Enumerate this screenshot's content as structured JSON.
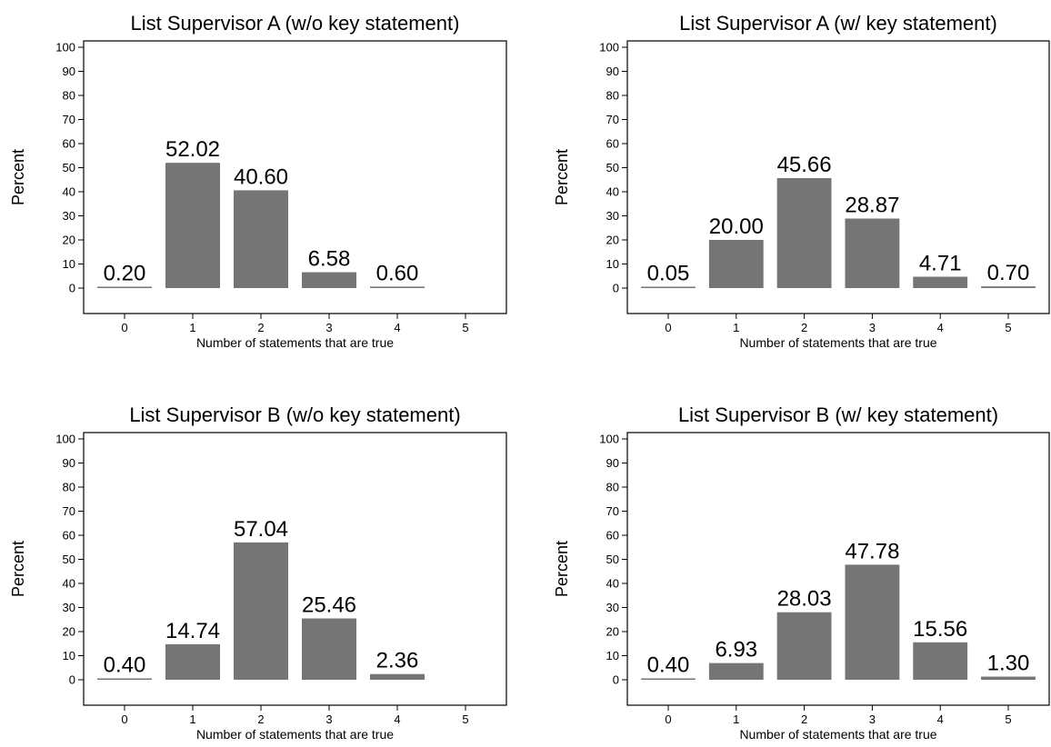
{
  "chart_data": [
    {
      "type": "bar",
      "title": "List Supervisor A (w/o key statement)",
      "xlabel": "Number of statements that are true",
      "ylabel": "Percent",
      "categories": [
        "0",
        "1",
        "2",
        "3",
        "4",
        "5"
      ],
      "values": [
        0.2,
        52.02,
        40.6,
        6.58,
        0.6,
        null
      ],
      "value_labels": [
        "0.20",
        "52.02",
        "40.60",
        "6.58",
        "0.60",
        ""
      ],
      "ylim": [
        0,
        100
      ],
      "yticks": [
        "0",
        "10",
        "20",
        "30",
        "40",
        "50",
        "60",
        "70",
        "80",
        "90",
        "100"
      ],
      "bar_color": "#757575",
      "grid": false
    },
    {
      "type": "bar",
      "title": "List Supervisor A (w/ key statement)",
      "xlabel": "Number of statements that are true",
      "ylabel": "Percent",
      "categories": [
        "0",
        "1",
        "2",
        "3",
        "4",
        "5"
      ],
      "values": [
        0.05,
        20.0,
        45.66,
        28.87,
        4.71,
        0.7
      ],
      "value_labels": [
        "0.05",
        "20.00",
        "45.66",
        "28.87",
        "4.71",
        "0.70"
      ],
      "ylim": [
        0,
        100
      ],
      "yticks": [
        "0",
        "10",
        "20",
        "30",
        "40",
        "50",
        "60",
        "70",
        "80",
        "90",
        "100"
      ],
      "bar_color": "#757575",
      "grid": false
    },
    {
      "type": "bar",
      "title": "List Supervisor B (w/o key statement)",
      "xlabel": "Number of statements that are true",
      "ylabel": "Percent",
      "categories": [
        "0",
        "1",
        "2",
        "3",
        "4",
        "5"
      ],
      "values": [
        0.4,
        14.74,
        57.04,
        25.46,
        2.36,
        null
      ],
      "value_labels": [
        "0.40",
        "14.74",
        "57.04",
        "25.46",
        "2.36",
        ""
      ],
      "ylim": [
        0,
        100
      ],
      "yticks": [
        "0",
        "10",
        "20",
        "30",
        "40",
        "50",
        "60",
        "70",
        "80",
        "90",
        "100"
      ],
      "bar_color": "#757575",
      "grid": false
    },
    {
      "type": "bar",
      "title": "List Supervisor B (w/ key statement)",
      "xlabel": "Number of statements that are true",
      "ylabel": "Percent",
      "categories": [
        "0",
        "1",
        "2",
        "3",
        "4",
        "5"
      ],
      "values": [
        0.4,
        6.93,
        28.03,
        47.78,
        15.56,
        1.3
      ],
      "value_labels": [
        "0.40",
        "6.93",
        "28.03",
        "47.78",
        "15.56",
        "1.30"
      ],
      "ylim": [
        0,
        100
      ],
      "yticks": [
        "0",
        "10",
        "20",
        "30",
        "40",
        "50",
        "60",
        "70",
        "80",
        "90",
        "100"
      ],
      "bar_color": "#757575",
      "grid": false
    }
  ]
}
